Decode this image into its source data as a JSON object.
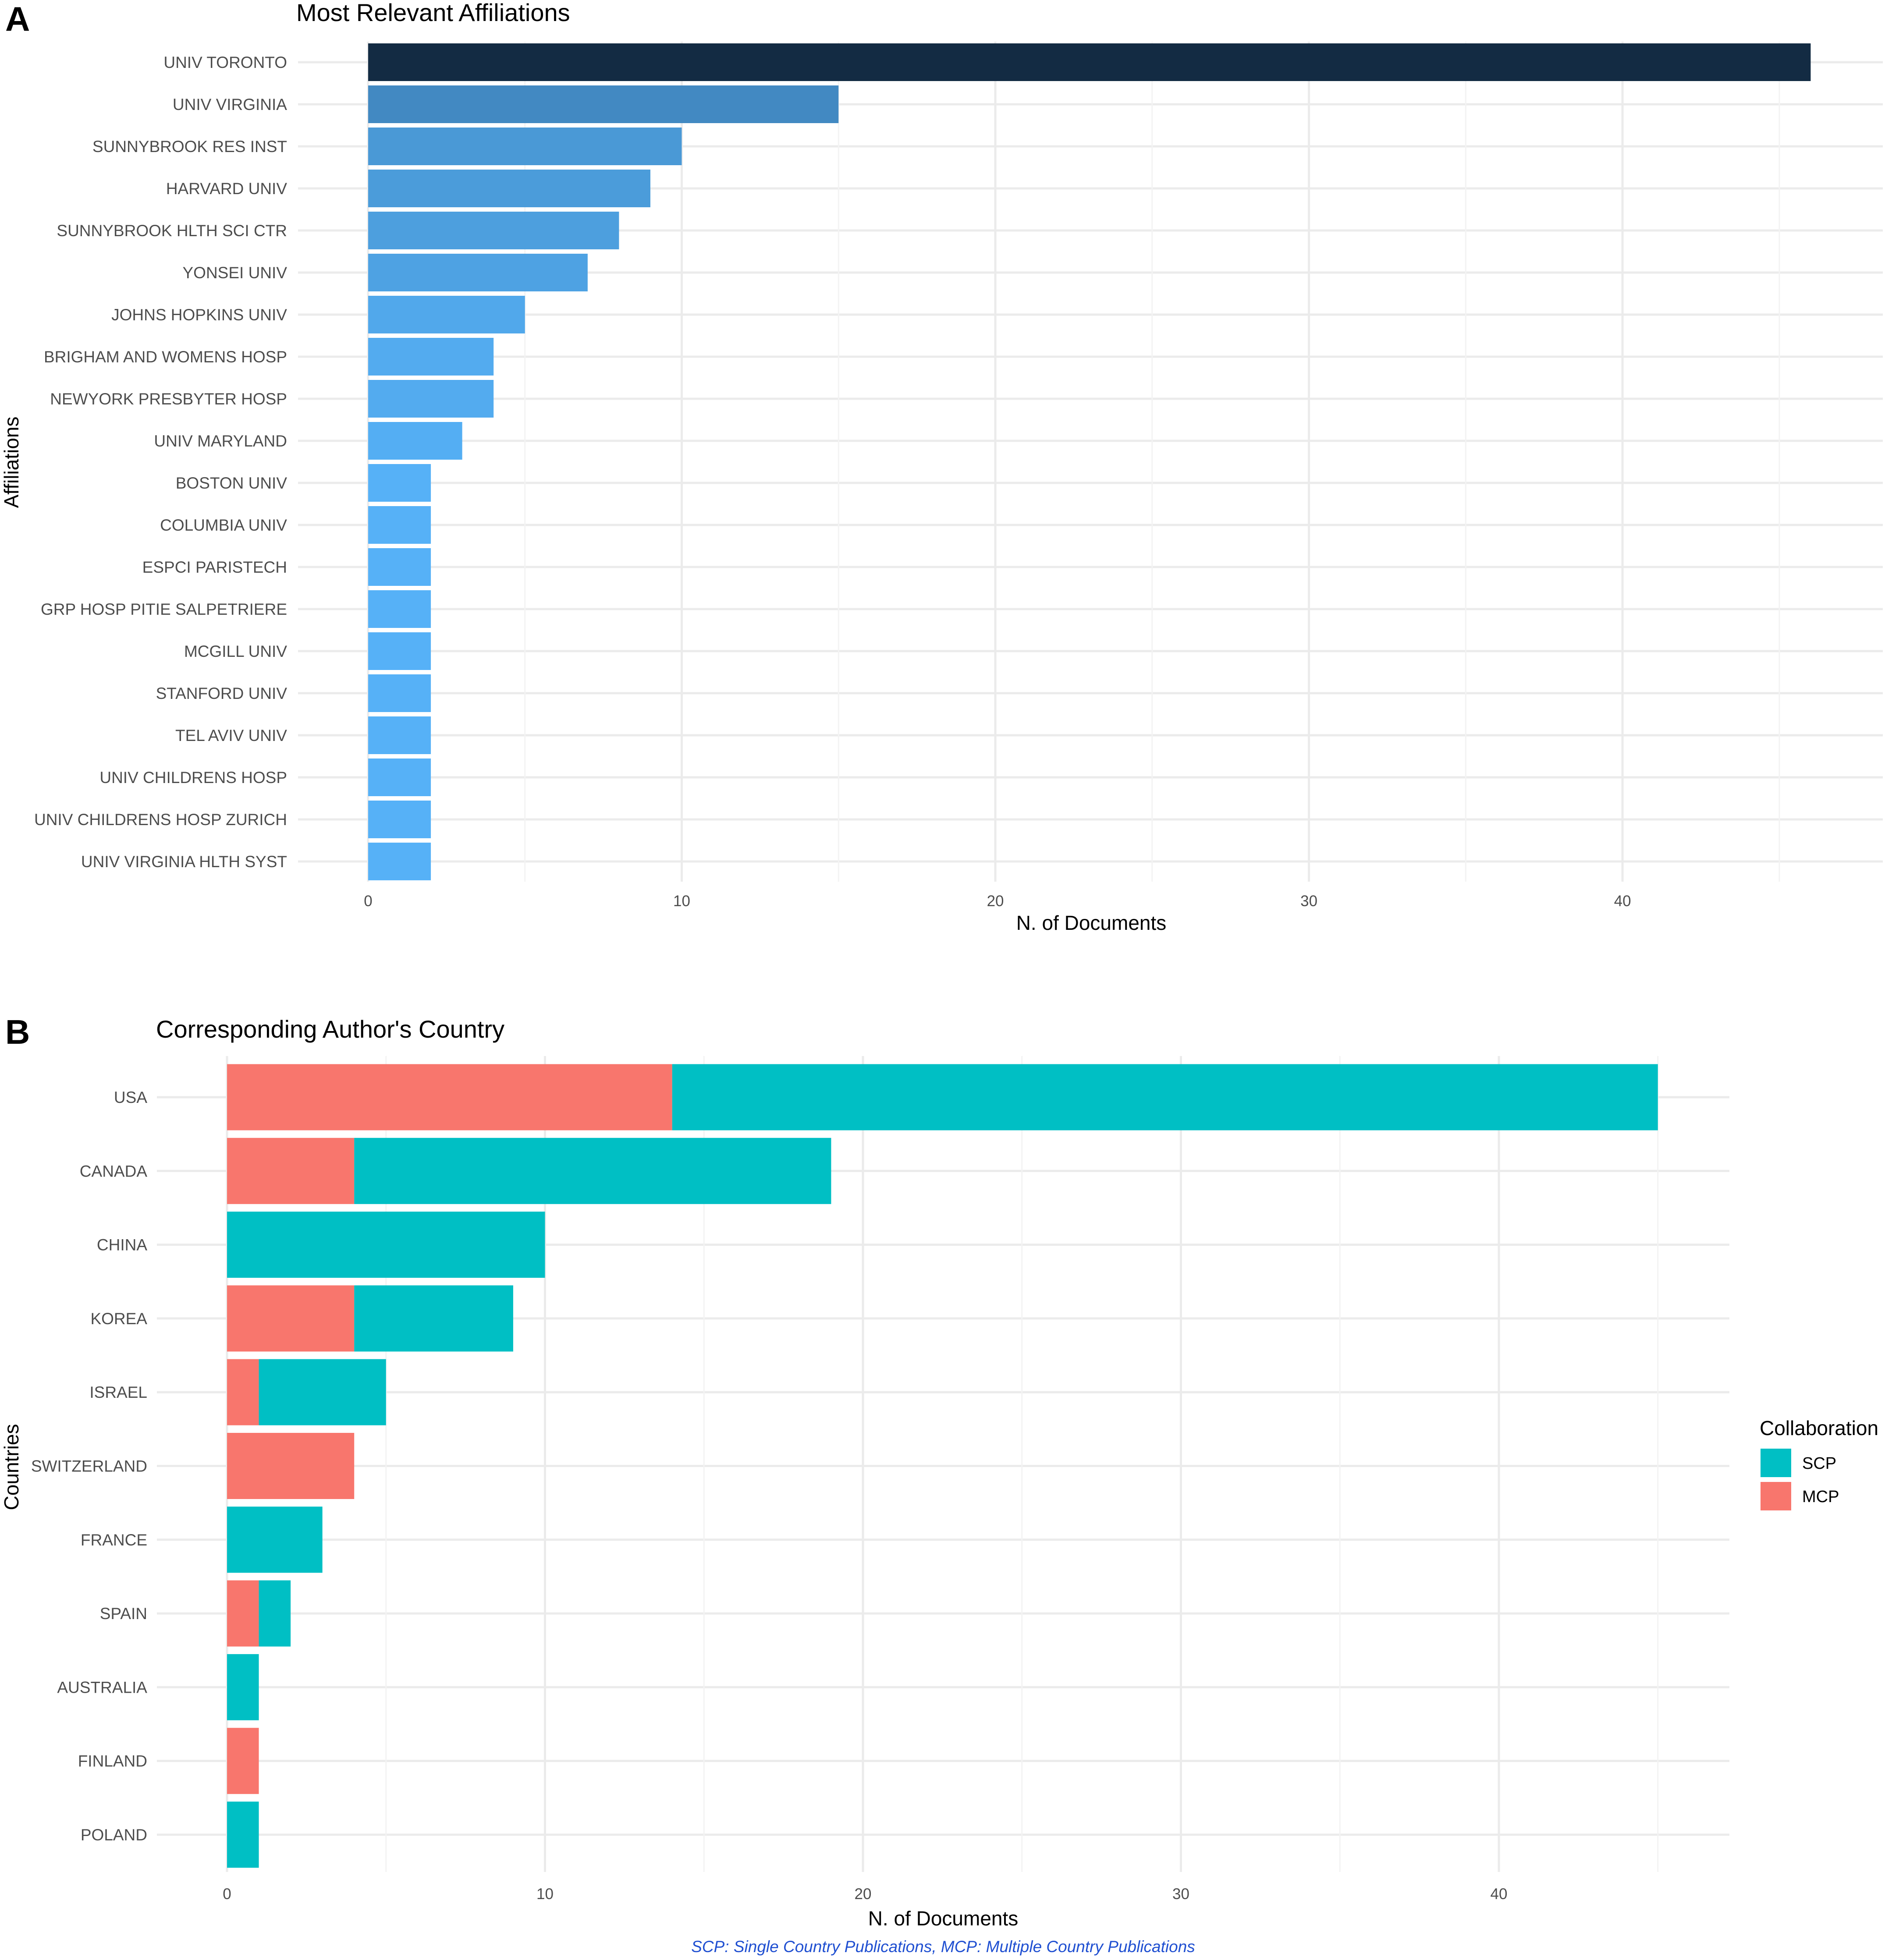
{
  "chart_data": [
    {
      "panel": "A",
      "type": "bar",
      "orientation": "horizontal",
      "title": "Most Relevant Affiliations",
      "xlabel": "N. of Documents",
      "ylabel": "Affiliations",
      "xlim": [
        0,
        48.3
      ],
      "xticks": [
        0,
        10,
        20,
        30,
        40
      ],
      "grid": true,
      "legend": "none",
      "categories": [
        "UNIV TORONTO",
        "UNIV VIRGINIA",
        "SUNNYBROOK RES INST",
        "HARVARD UNIV",
        "SUNNYBROOK HLTH SCI CTR",
        "YONSEI UNIV",
        "JOHNS HOPKINS UNIV",
        "BRIGHAM AND WOMENS HOSP",
        "NEWYORK PRESBYTER HOSP",
        "UNIV MARYLAND",
        "BOSTON UNIV",
        "COLUMBIA UNIV",
        "ESPCI PARISTECH",
        "GRP HOSP PITIE SALPETRIERE",
        "MCGILL UNIV",
        "STANFORD UNIV",
        "TEL AVIV UNIV",
        "UNIV CHILDRENS HOSP",
        "UNIV CHILDRENS HOSP ZURICH",
        "UNIV VIRGINIA HLTH SYST"
      ],
      "values": [
        46,
        15,
        10,
        9,
        8,
        7,
        5,
        4,
        4,
        3,
        2,
        2,
        2,
        2,
        2,
        2,
        2,
        2,
        2,
        2
      ],
      "fill_scale": {
        "low": "#56b1f7",
        "high": "#132b43"
      }
    },
    {
      "panel": "B",
      "type": "bar",
      "orientation": "horizontal",
      "stacked": true,
      "title": "Corresponding Author's Country",
      "xlabel": "N. of Documents",
      "ylabel": "Countries",
      "xlim": [
        0,
        47.25
      ],
      "xticks": [
        0,
        10,
        20,
        30,
        40
      ],
      "grid": true,
      "legend": "right",
      "legend_title": "Collaboration",
      "categories": [
        "USA",
        "CANADA",
        "CHINA",
        "KOREA",
        "ISRAEL",
        "SWITZERLAND",
        "FRANCE",
        "SPAIN",
        "AUSTRALIA",
        "FINLAND",
        "POLAND"
      ],
      "series": [
        {
          "name": "SCP",
          "color": "#00bfc4",
          "values": [
            31,
            15,
            10,
            5,
            4,
            0,
            3,
            1,
            1,
            0,
            1
          ]
        },
        {
          "name": "MCP",
          "color": "#f8766d",
          "values": [
            14,
            4,
            0,
            4,
            1,
            4,
            0,
            1,
            0,
            1,
            0
          ]
        }
      ],
      "caption": "SCP: Single Country Publications, MCP: Multiple Country Publications",
      "caption_color": "#1f4fd1"
    }
  ]
}
